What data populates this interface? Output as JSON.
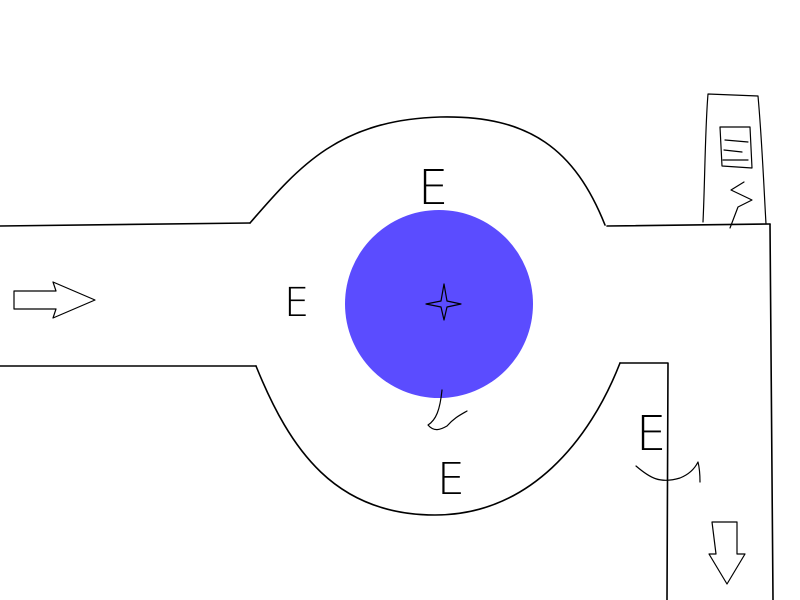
{
  "colors": {
    "background": "#ffffff",
    "ink": "#000000",
    "center_circle": "#5b4cff"
  },
  "labels": {
    "top": "E",
    "left": "E",
    "bottom": "E",
    "right_exit": "E"
  },
  "icons": {
    "entry_arrow": "arrow-right-icon",
    "exit_arrow": "arrow-down-icon",
    "center_marker": "four-point-star-icon",
    "corner_building": "building-icon"
  }
}
